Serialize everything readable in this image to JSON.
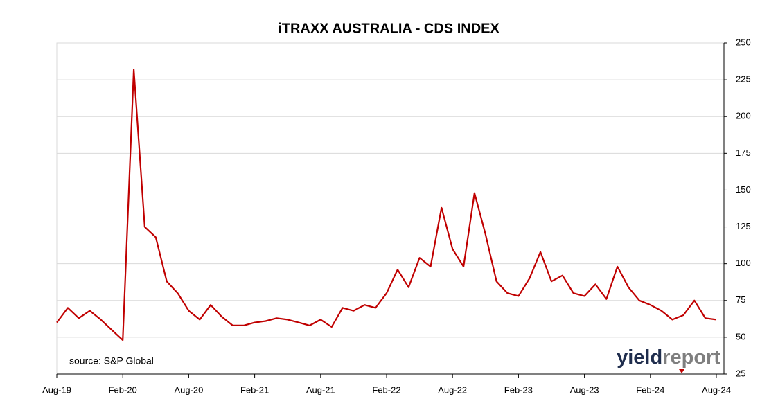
{
  "chart_data": {
    "type": "line",
    "title": "iTRAXX AUSTRALIA - CDS INDEX",
    "source": "source: S&P Global",
    "logo": {
      "first": "yield",
      "second": "report"
    },
    "x": [
      "Aug-19",
      "Sep-19",
      "Oct-19",
      "Nov-19",
      "Dec-19",
      "Jan-20",
      "Feb-20",
      "Mar-20",
      "Apr-20",
      "May-20",
      "Jun-20",
      "Jul-20",
      "Aug-20",
      "Sep-20",
      "Oct-20",
      "Nov-20",
      "Dec-20",
      "Jan-21",
      "Feb-21",
      "Mar-21",
      "Apr-21",
      "May-21",
      "Jun-21",
      "Jul-21",
      "Aug-21",
      "Sep-21",
      "Oct-21",
      "Nov-21",
      "Dec-21",
      "Jan-22",
      "Feb-22",
      "Mar-22",
      "Apr-22",
      "May-22",
      "Jun-22",
      "Jul-22",
      "Aug-22",
      "Sep-22",
      "Oct-22",
      "Nov-22",
      "Dec-22",
      "Jan-23",
      "Feb-23",
      "Mar-23",
      "Apr-23",
      "May-23",
      "Jun-23",
      "Jul-23",
      "Aug-23",
      "Sep-23",
      "Oct-23",
      "Nov-23",
      "Dec-23",
      "Jan-24",
      "Feb-24",
      "Mar-24",
      "Apr-24",
      "May-24",
      "Jun-24",
      "Jul-24",
      "Aug-24"
    ],
    "series": [
      {
        "name": "iTRAXX Australia",
        "color": "#c00000",
        "values": [
          60,
          70,
          63,
          68,
          62,
          55,
          48,
          232,
          125,
          118,
          88,
          80,
          68,
          62,
          72,
          64,
          58,
          58,
          60,
          61,
          63,
          62,
          60,
          58,
          62,
          57,
          70,
          68,
          72,
          70,
          80,
          96,
          84,
          104,
          98,
          138,
          110,
          98,
          148,
          120,
          88,
          80,
          78,
          90,
          108,
          88,
          92,
          80,
          78,
          86,
          76,
          98,
          84,
          75,
          72,
          68,
          62,
          65,
          75,
          63,
          62
        ]
      }
    ],
    "xticks": [
      "Aug-19",
      "Feb-20",
      "Aug-20",
      "Feb-21",
      "Aug-21",
      "Feb-22",
      "Aug-22",
      "Feb-23",
      "Aug-23",
      "Feb-24",
      "Aug-24"
    ],
    "ylim": [
      25,
      250
    ],
    "yticks": [
      25,
      50,
      75,
      100,
      125,
      150,
      175,
      200,
      225,
      250
    ],
    "grid": true
  }
}
